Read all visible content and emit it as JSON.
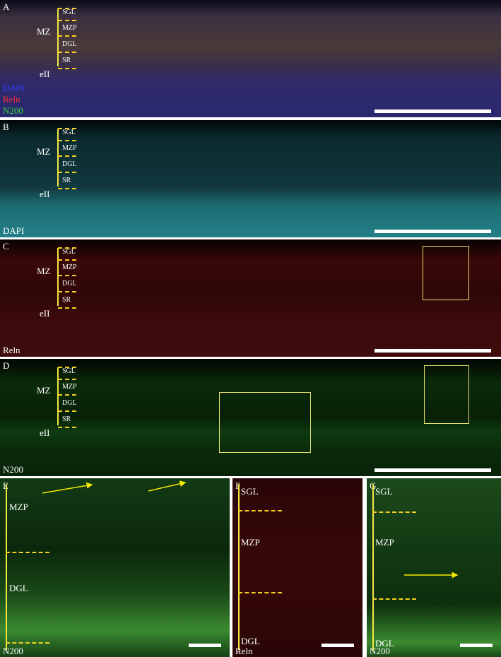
{
  "panels": [
    {
      "letter": "A",
      "zones": [
        "SGL",
        "MZP",
        "DGL",
        "SR"
      ],
      "regions": [
        "MZ",
        "eII"
      ],
      "channels": [
        "DAPI",
        "Reln",
        "N200"
      ]
    },
    {
      "letter": "B",
      "zones": [
        "SGL",
        "MZP",
        "DGL",
        "SR"
      ],
      "regions": [
        "MZ",
        "eII"
      ],
      "channels": [
        "DAPI"
      ]
    },
    {
      "letter": "C",
      "zones": [
        "SGL",
        "MZP",
        "DGL",
        "SR"
      ],
      "regions": [
        "MZ",
        "eII"
      ],
      "channels": [
        "Reln"
      ]
    },
    {
      "letter": "D",
      "zones": [
        "SGL",
        "MZP",
        "DGL",
        "SR"
      ],
      "regions": [
        "MZ",
        "eII"
      ],
      "channels": [
        "N200"
      ]
    }
  ],
  "insets": [
    {
      "letter": "E",
      "zones": [
        "MZP",
        "DGL"
      ],
      "channel": "N200"
    },
    {
      "letter": "F",
      "zones": [
        "SGL",
        "MZP",
        "DGL"
      ],
      "channel": "Reln"
    },
    {
      "letter": "G",
      "zones": [
        "SGL",
        "MZP",
        "DGL"
      ],
      "channel": "N200"
    }
  ]
}
